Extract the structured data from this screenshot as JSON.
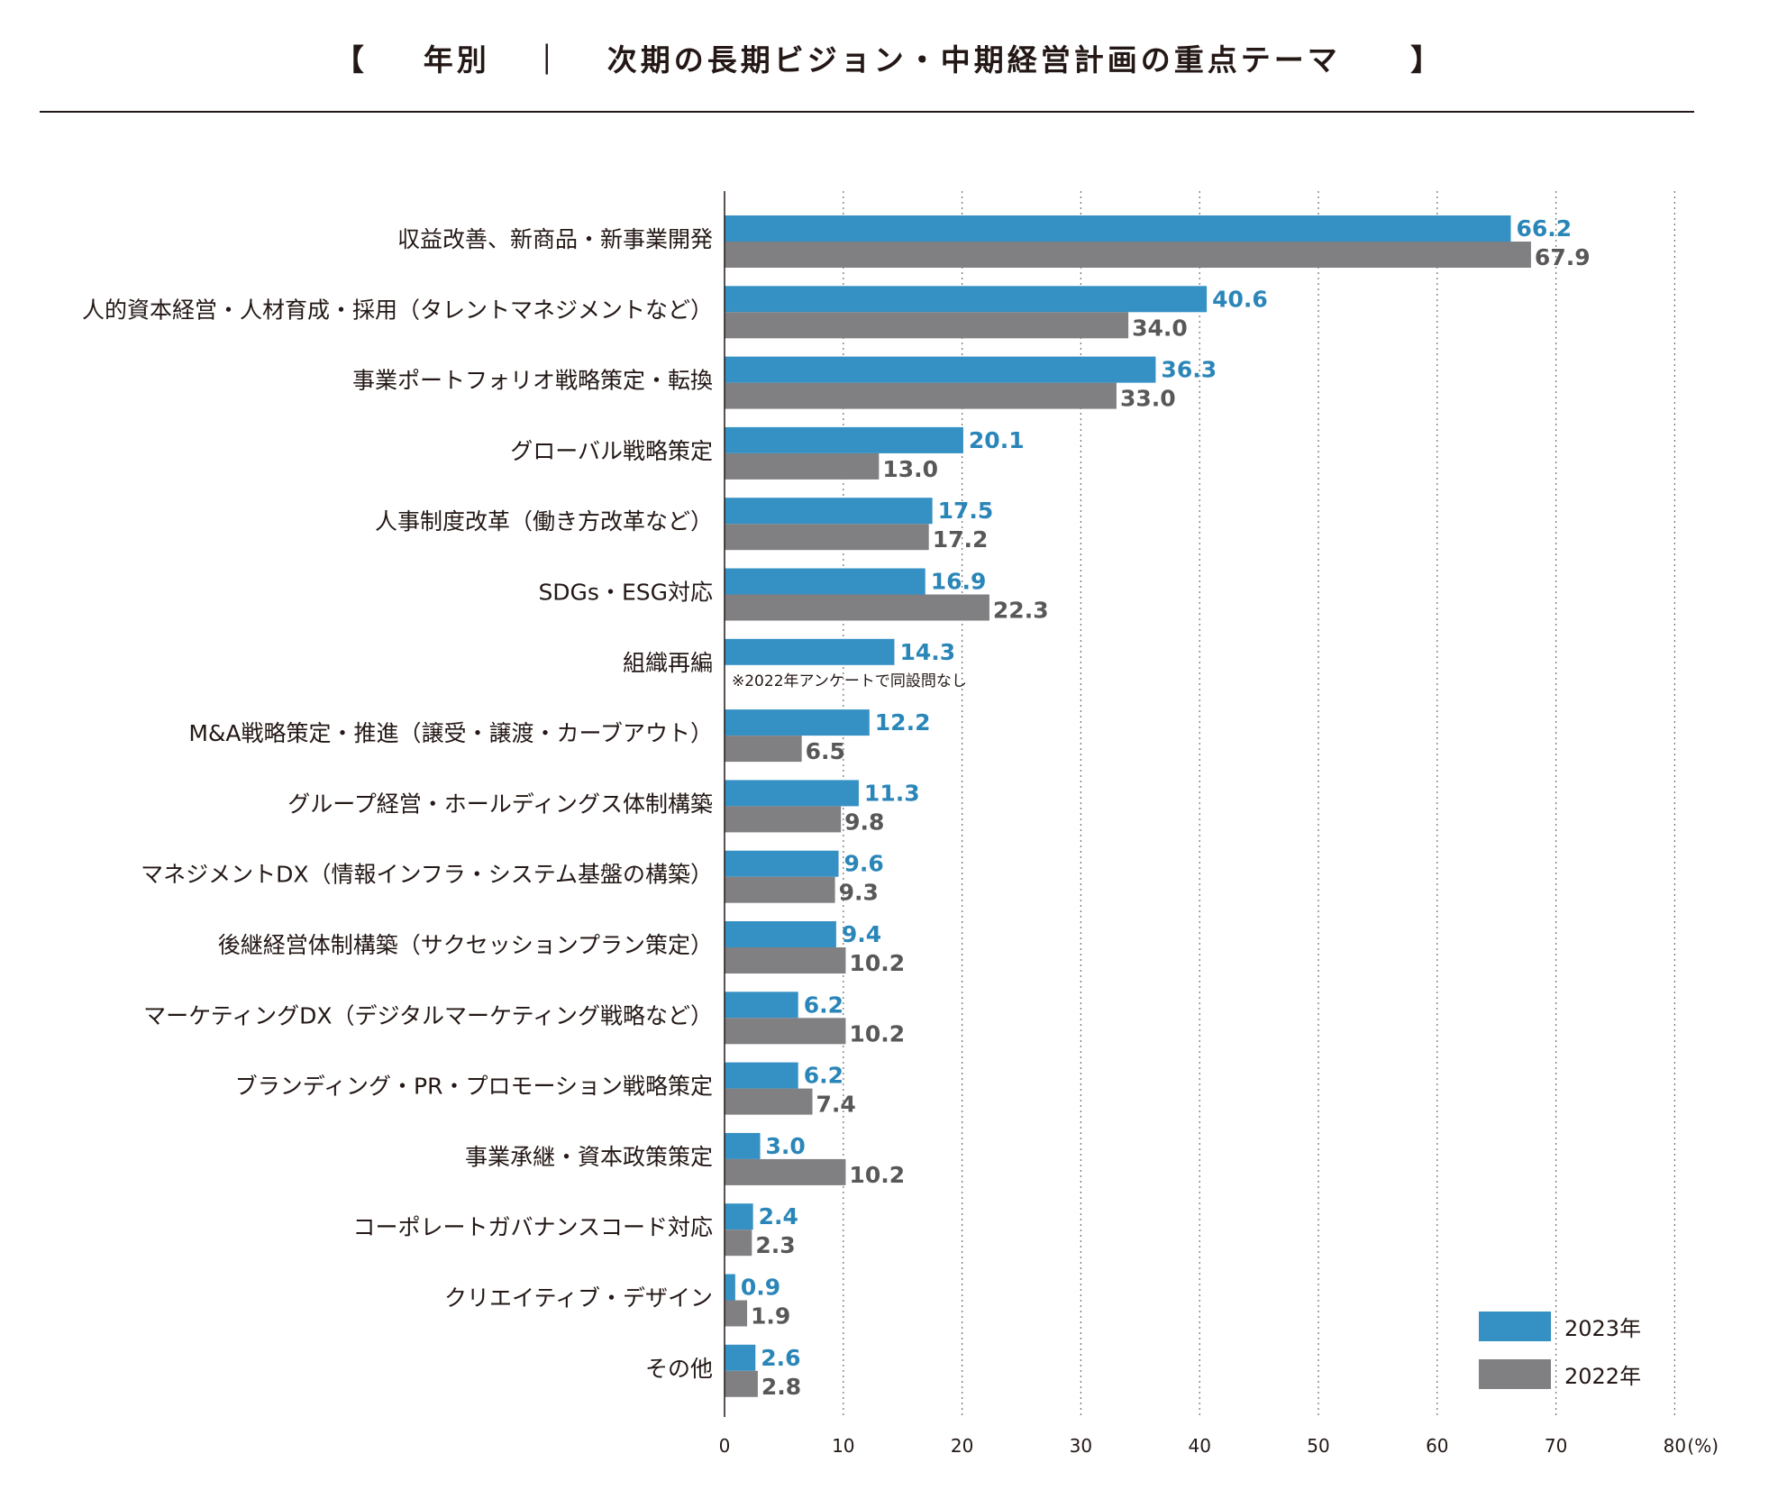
{
  "title": {
    "open_bracket": "【",
    "text1": "年別",
    "separator": "｜",
    "text2": "次期の長期ビジョン・中期経営計画の重点テーマ",
    "close_bracket": "】"
  },
  "colors": {
    "series_2023": "#3590c4",
    "series_2022": "#808083",
    "label_2023": "#2a86b8",
    "label_2022": "#595757"
  },
  "chart_data": {
    "type": "bar",
    "orientation": "horizontal",
    "title": "年別 ｜ 次期の長期ビジョン・中期経営計画の重点テーマ",
    "categories": [
      "収益改善、新商品・新事業開発",
      "人的資本経営・人材育成・採用（タレントマネジメントなど）",
      "事業ポートフォリオ戦略策定・転換",
      "グローバル戦略策定",
      "人事制度改革（働き方改革など）",
      "SDGs・ESG対応",
      "組織再編",
      "M&A戦略策定・推進（譲受・譲渡・カーブアウト）",
      "グループ経営・ホールディングス体制構築",
      "マネジメントDX（情報インフラ・システム基盤の構築）",
      "後継経営体制構築（サクセッションプラン策定）",
      "マーケティングDX（デジタルマーケティング戦略など）",
      "ブランディング・PR・プロモーション戦略策定",
      "事業承継・資本政策策定",
      "コーポレートガバナンスコード対応",
      "クリエイティブ・デザイン",
      "その他"
    ],
    "series": [
      {
        "name": "2023年",
        "values": [
          66.2,
          40.6,
          36.3,
          20.1,
          17.5,
          16.9,
          14.3,
          12.2,
          11.3,
          9.6,
          9.4,
          6.2,
          6.2,
          3.0,
          2.4,
          0.9,
          2.6
        ]
      },
      {
        "name": "2022年",
        "values": [
          67.9,
          34.0,
          33.0,
          13.0,
          17.2,
          22.3,
          null,
          6.5,
          9.8,
          9.3,
          10.2,
          10.2,
          7.4,
          10.2,
          2.3,
          1.9,
          2.8
        ]
      }
    ],
    "value_labels": {
      "2023": [
        "66.2",
        "40.6",
        "36.3",
        "20.1",
        "17.5",
        "16.9",
        "14.3",
        "12.2",
        "11.3",
        "9.6",
        "9.4",
        "6.2",
        "6.2",
        "3.0",
        "2.4",
        "0.9",
        "2.6"
      ],
      "2022": [
        "67.9",
        "34.0",
        "33.0",
        "13.0",
        "17.2",
        "22.3",
        "",
        "6.5",
        "9.8",
        "9.3",
        "10.2",
        "10.2",
        "7.4",
        "10.2",
        "2.3",
        "1.9",
        "2.8"
      ]
    },
    "xlim": [
      0,
      80
    ],
    "xticks": [
      0,
      10,
      20,
      30,
      40,
      50,
      60,
      70,
      80
    ],
    "xtick_labels": [
      "0",
      "10",
      "20",
      "30",
      "40",
      "50",
      "60",
      "70",
      "80"
    ],
    "x_unit": "(%)",
    "grid": "vertical dotted",
    "legend": {
      "position": "bottom-right",
      "entries": [
        "2023年",
        "2022年"
      ]
    },
    "annotations": [
      {
        "category": "組織再編",
        "text": "※2022年アンケートで同設問なし"
      }
    ]
  }
}
